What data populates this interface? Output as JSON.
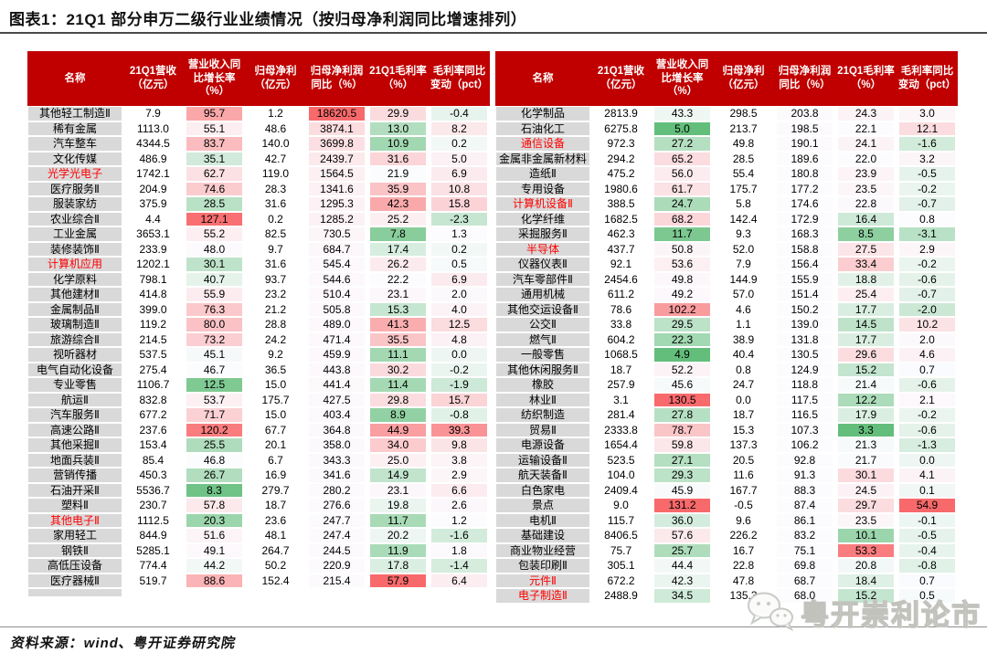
{
  "title": "图表1：21Q1 部分申万二级行业业绩情况（按归母净利润同比增速排列）",
  "source": "资料来源：wind、粤开证券研究院",
  "watermark": "粤开崇利论市",
  "colors": {
    "header_bg": "#c00000",
    "header_text": "#ffffff",
    "name_bg": "#d9d9d9",
    "name_highlight": "#fe0000",
    "scale_green": "#63be7b",
    "scale_white": "#fcfcff",
    "scale_red": "#f8696b"
  },
  "chart_data": {
    "type": "table",
    "title": "图表1：21Q1 部分申万二级行业业绩情况（按归母净利润同比增速排列）",
    "columns": [
      "名称",
      "21Q1营收（亿元）",
      "营业收入同比增长率（%）",
      "归母净利（亿元）",
      "归母净利润同比（%）",
      "21Q1毛利率（%）",
      "毛利率同比变动（pct）"
    ],
    "heatmap_scales": [
      null,
      {
        "type": "3color",
        "min": 4.9,
        "mid": 47,
        "max": 131.2
      },
      null,
      {
        "type": "2color",
        "min": 0,
        "max": 18620.5
      },
      {
        "type": "3color",
        "min": 3.3,
        "mid": 22,
        "max": 57.9
      },
      {
        "type": "3color",
        "min": -8,
        "mid": 0.8,
        "max": 54.9
      }
    ],
    "left_rows": [
      {
        "name": "其他轻工制造Ⅱ",
        "red": false,
        "values": [
          "7.9",
          "95.7",
          "1.2",
          "18620.5",
          "29.9",
          "-0.4"
        ]
      },
      {
        "name": "稀有金属",
        "red": false,
        "values": [
          "1113.0",
          "55.1",
          "48.6",
          "3874.1",
          "13.0",
          "8.2"
        ]
      },
      {
        "name": "汽车整车",
        "red": false,
        "values": [
          "4344.5",
          "83.7",
          "140.0",
          "3699.8",
          "10.9",
          "0.2"
        ]
      },
      {
        "name": "文化传媒",
        "red": false,
        "values": [
          "486.9",
          "35.1",
          "42.7",
          "2439.7",
          "31.6",
          "5.0"
        ]
      },
      {
        "name": "光学光电子",
        "red": true,
        "values": [
          "1742.1",
          "62.7",
          "119.0",
          "1564.5",
          "21.9",
          "6.9"
        ]
      },
      {
        "name": "医疗服务Ⅱ",
        "red": false,
        "values": [
          "204.9",
          "74.6",
          "28.3",
          "1341.6",
          "35.9",
          "10.8"
        ]
      },
      {
        "name": "服装家纺",
        "red": false,
        "values": [
          "375.9",
          "28.5",
          "31.6",
          "1295.3",
          "42.3",
          "15.8"
        ]
      },
      {
        "name": "农业综合Ⅱ",
        "red": false,
        "values": [
          "4.4",
          "127.1",
          "0.2",
          "1285.2",
          "25.2",
          "-2.3"
        ]
      },
      {
        "name": "工业金属",
        "red": false,
        "values": [
          "3653.1",
          "55.2",
          "82.5",
          "730.5",
          "7.8",
          "1.3"
        ]
      },
      {
        "name": "装修装饰Ⅱ",
        "red": false,
        "values": [
          "233.9",
          "48.0",
          "9.7",
          "684.7",
          "17.4",
          "0.2"
        ]
      },
      {
        "name": "计算机应用",
        "red": true,
        "values": [
          "1202.1",
          "30.1",
          "31.6",
          "545.4",
          "26.2",
          "0.5"
        ]
      },
      {
        "name": "化学原料",
        "red": false,
        "values": [
          "798.1",
          "40.7",
          "93.7",
          "544.6",
          "22.2",
          "6.9"
        ]
      },
      {
        "name": "其他建材Ⅱ",
        "red": false,
        "values": [
          "414.8",
          "55.9",
          "23.2",
          "510.4",
          "23.1",
          "2.0"
        ]
      },
      {
        "name": "金属制品Ⅱ",
        "red": false,
        "values": [
          "399.0",
          "76.3",
          "21.2",
          "505.8",
          "15.3",
          "4.0"
        ]
      },
      {
        "name": "玻璃制造Ⅱ",
        "red": false,
        "values": [
          "119.2",
          "80.0",
          "28.8",
          "489.0",
          "41.3",
          "12.5"
        ]
      },
      {
        "name": "旅游综合Ⅱ",
        "red": false,
        "values": [
          "214.5",
          "73.2",
          "24.2",
          "471.4",
          "35.5",
          "4.8"
        ]
      },
      {
        "name": "视听器材",
        "red": false,
        "values": [
          "537.5",
          "45.1",
          "9.2",
          "459.9",
          "11.1",
          "0.0"
        ]
      },
      {
        "name": "电气自动化设备",
        "red": false,
        "values": [
          "275.4",
          "46.7",
          "36.5",
          "443.8",
          "30.2",
          "-0.2"
        ]
      },
      {
        "name": "专业零售",
        "red": false,
        "values": [
          "1106.7",
          "12.5",
          "15.0",
          "441.4",
          "11.4",
          "-1.9"
        ]
      },
      {
        "name": "航运Ⅱ",
        "red": false,
        "values": [
          "832.8",
          "53.7",
          "175.7",
          "427.5",
          "29.8",
          "15.7"
        ]
      },
      {
        "name": "汽车服务Ⅱ",
        "red": false,
        "values": [
          "677.2",
          "71.7",
          "15.0",
          "403.4",
          "8.9",
          "-0.8"
        ]
      },
      {
        "name": "高速公路Ⅱ",
        "red": false,
        "values": [
          "237.6",
          "120.2",
          "67.7",
          "364.8",
          "44.9",
          "39.3"
        ]
      },
      {
        "name": "其他采掘Ⅱ",
        "red": false,
        "values": [
          "153.4",
          "25.5",
          "20.1",
          "358.0",
          "34.0",
          "9.8"
        ]
      },
      {
        "name": "地面兵装Ⅱ",
        "red": false,
        "values": [
          "85.4",
          "46.8",
          "6.7",
          "343.3",
          "25.0",
          "3.8"
        ]
      },
      {
        "name": "营销传播",
        "red": false,
        "values": [
          "450.3",
          "26.7",
          "16.9",
          "341.6",
          "14.9",
          "2.9"
        ]
      },
      {
        "name": "石油开采Ⅱ",
        "red": false,
        "values": [
          "5536.7",
          "8.3",
          "279.7",
          "280.2",
          "23.1",
          "6.6"
        ]
      },
      {
        "name": "塑料Ⅱ",
        "red": false,
        "values": [
          "230.7",
          "57.8",
          "18.7",
          "276.6",
          "19.8",
          "2.6"
        ]
      },
      {
        "name": "其他电子Ⅱ",
        "red": true,
        "values": [
          "1112.5",
          "20.3",
          "23.6",
          "247.7",
          "11.7",
          "1.2"
        ]
      },
      {
        "name": "家用轻工",
        "red": false,
        "values": [
          "844.9",
          "51.6",
          "48.1",
          "247.4",
          "20.2",
          "-1.6"
        ]
      },
      {
        "name": "钢铁Ⅱ",
        "red": false,
        "values": [
          "5285.1",
          "49.1",
          "264.7",
          "244.5",
          "11.9",
          "1.8"
        ]
      },
      {
        "name": "高低压设备",
        "red": false,
        "values": [
          "774.4",
          "44.2",
          "50.2",
          "220.9",
          "17.8",
          "-1.4"
        ]
      },
      {
        "name": "医疗器械Ⅱ",
        "red": false,
        "values": [
          "519.7",
          "88.6",
          "152.4",
          "215.4",
          "57.9",
          "6.4"
        ]
      },
      {
        "name": "",
        "red": false,
        "values": [
          "",
          "",
          "",
          "",
          "",
          ""
        ],
        "partial": true
      }
    ],
    "right_rows": [
      {
        "name": "化学制品",
        "red": false,
        "values": [
          "2813.9",
          "43.3",
          "298.5",
          "203.8",
          "24.3",
          "3.0"
        ]
      },
      {
        "name": "石油化工",
        "red": false,
        "values": [
          "6275.8",
          "5.0",
          "213.7",
          "198.5",
          "22.1",
          "12.1"
        ]
      },
      {
        "name": "通信设备",
        "red": true,
        "values": [
          "972.3",
          "27.2",
          "49.8",
          "190.1",
          "24.1",
          "-1.6"
        ]
      },
      {
        "name": "金属非金属新材料",
        "red": false,
        "values": [
          "294.2",
          "65.2",
          "28.5",
          "189.6",
          "22.0",
          "3.2"
        ]
      },
      {
        "name": "造纸Ⅱ",
        "red": false,
        "values": [
          "475.2",
          "56.0",
          "55.4",
          "180.8",
          "23.9",
          "-0.5"
        ]
      },
      {
        "name": "专用设备",
        "red": false,
        "values": [
          "1980.6",
          "61.7",
          "175.7",
          "177.2",
          "23.5",
          "-0.2"
        ]
      },
      {
        "name": "计算机设备Ⅱ",
        "red": true,
        "values": [
          "388.5",
          "24.7",
          "5.8",
          "174.6",
          "22.8",
          "-0.7"
        ]
      },
      {
        "name": "化学纤维",
        "red": false,
        "values": [
          "1682.5",
          "68.2",
          "142.4",
          "172.9",
          "16.4",
          "0.8"
        ]
      },
      {
        "name": "采掘服务Ⅱ",
        "red": false,
        "values": [
          "462.3",
          "11.7",
          "9.3",
          "168.3",
          "8.5",
          "-3.1"
        ]
      },
      {
        "name": "半导体",
        "red": true,
        "values": [
          "437.7",
          "50.8",
          "52.0",
          "158.8",
          "27.5",
          "2.9"
        ]
      },
      {
        "name": "仪器仪表Ⅱ",
        "red": false,
        "values": [
          "92.1",
          "53.6",
          "7.9",
          "156.4",
          "33.4",
          "-0.2"
        ]
      },
      {
        "name": "汽车零部件Ⅱ",
        "red": false,
        "values": [
          "2454.6",
          "49.8",
          "144.9",
          "155.9",
          "18.8",
          "-0.6"
        ]
      },
      {
        "name": "通用机械",
        "red": false,
        "values": [
          "611.2",
          "49.2",
          "57.0",
          "151.4",
          "25.4",
          "-0.7"
        ]
      },
      {
        "name": "其他交运设备Ⅱ",
        "red": false,
        "values": [
          "78.6",
          "102.2",
          "4.6",
          "150.2",
          "17.7",
          "-2.0"
        ]
      },
      {
        "name": "公交Ⅱ",
        "red": false,
        "values": [
          "33.8",
          "29.5",
          "1.1",
          "139.0",
          "14.5",
          "10.2"
        ]
      },
      {
        "name": "燃气Ⅱ",
        "red": false,
        "values": [
          "604.2",
          "22.3",
          "38.9",
          "131.8",
          "17.7",
          "2.0"
        ]
      },
      {
        "name": "一般零售",
        "red": false,
        "values": [
          "1068.5",
          "4.9",
          "40.4",
          "130.5",
          "29.6",
          "4.6"
        ]
      },
      {
        "name": "其他休闲服务Ⅱ",
        "red": false,
        "values": [
          "18.7",
          "52.2",
          "0.8",
          "124.9",
          "15.2",
          "0.7"
        ]
      },
      {
        "name": "橡胶",
        "red": false,
        "values": [
          "257.9",
          "45.6",
          "24.7",
          "118.8",
          "21.4",
          "-0.6"
        ]
      },
      {
        "name": "林业Ⅱ",
        "red": false,
        "values": [
          "3.1",
          "130.5",
          "0.0",
          "117.5",
          "12.2",
          "2.1"
        ]
      },
      {
        "name": "纺织制造",
        "red": false,
        "values": [
          "281.4",
          "27.8",
          "18.7",
          "116.5",
          "17.9",
          "-0.2"
        ]
      },
      {
        "name": "贸易Ⅱ",
        "red": false,
        "values": [
          "2333.8",
          "78.7",
          "15.3",
          "107.3",
          "3.3",
          "-0.6"
        ]
      },
      {
        "name": "电源设备",
        "red": false,
        "values": [
          "1654.4",
          "59.8",
          "137.3",
          "106.2",
          "21.3",
          "-1.3"
        ]
      },
      {
        "name": "运输设备Ⅱ",
        "red": false,
        "values": [
          "523.5",
          "27.1",
          "20.5",
          "92.8",
          "21.7",
          "0.0"
        ]
      },
      {
        "name": "航天装备Ⅱ",
        "red": false,
        "values": [
          "104.0",
          "29.3",
          "11.6",
          "91.3",
          "30.1",
          "4.1"
        ]
      },
      {
        "name": "白色家电",
        "red": false,
        "values": [
          "2409.4",
          "45.9",
          "167.7",
          "88.3",
          "24.5",
          "0.1"
        ]
      },
      {
        "name": "景点",
        "red": false,
        "values": [
          "9.0",
          "131.2",
          "-0.5",
          "87.4",
          "29.7",
          "54.9"
        ]
      },
      {
        "name": "电机Ⅱ",
        "red": false,
        "values": [
          "115.7",
          "36.0",
          "9.6",
          "86.1",
          "23.5",
          "-0.1"
        ]
      },
      {
        "name": "基础建设",
        "red": false,
        "values": [
          "8406.5",
          "57.6",
          "226.2",
          "83.2",
          "10.1",
          "-0.5"
        ]
      },
      {
        "name": "商业物业经营",
        "red": false,
        "values": [
          "75.7",
          "25.7",
          "16.7",
          "75.1",
          "53.3",
          "-0.4"
        ]
      },
      {
        "name": "包装印刷Ⅱ",
        "red": false,
        "values": [
          "305.1",
          "44.4",
          "22.8",
          "69.8",
          "20.8",
          "-0.8"
        ]
      },
      {
        "name": "元件Ⅱ",
        "red": true,
        "values": [
          "672.2",
          "42.3",
          "47.8",
          "68.7",
          "18.4",
          "0.7"
        ]
      },
      {
        "name": "电子制造Ⅱ",
        "red": true,
        "values": [
          "2488.9",
          "34.5",
          "135.3",
          "68.0",
          "15.2",
          "0.5"
        ]
      }
    ]
  }
}
